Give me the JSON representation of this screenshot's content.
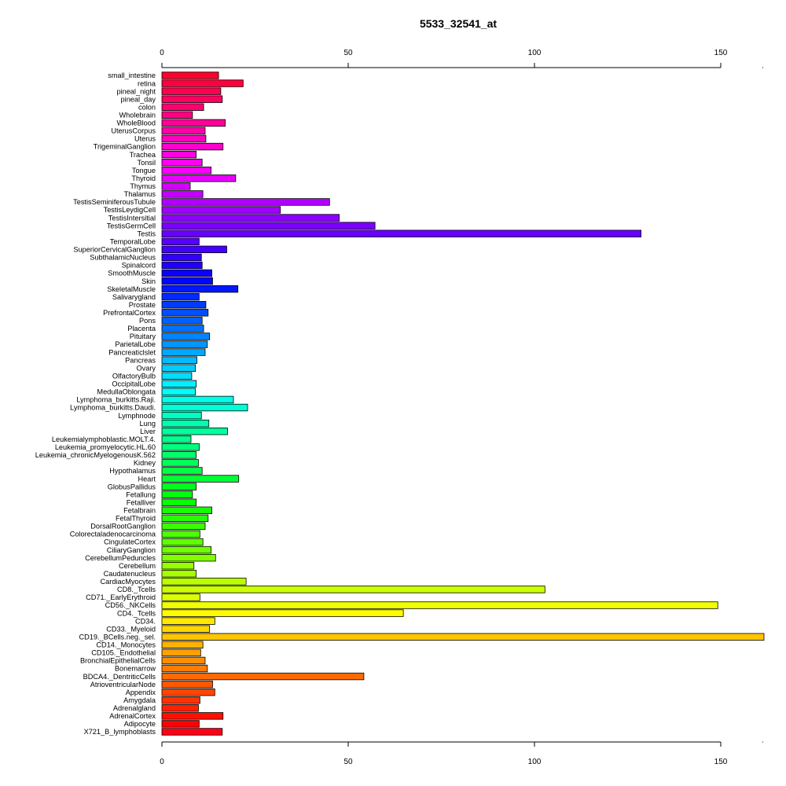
{
  "chart_data": {
    "type": "bar",
    "orientation": "horizontal",
    "title": "5533_32541_at",
    "xlabel": "",
    "ylabel": "",
    "xlim": [
      0,
      162
    ],
    "xticks": [
      0,
      50,
      100,
      150
    ],
    "xtick_labels": [
      "0",
      "50",
      "100",
      "150"
    ],
    "axis_positions": [
      "top",
      "bottom"
    ],
    "grid": false,
    "categories": [
      "small_intestine",
      "retina",
      "pineal_night",
      "pineal_day",
      "colon",
      "Wholebrain",
      "WholeBlood",
      "UterusCorpus",
      "Uterus",
      "TrigeminalGanglion",
      "Trachea",
      "Tonsil",
      "Tongue",
      "Thyroid",
      "Thymus",
      "Thalamus",
      "TestisSeminiferousTubule",
      "TestisLeydigCell",
      "TestisIntersitial",
      "TestisGermCell",
      "Testis",
      "TemporalLobe",
      "SuperiorCervicalGanglion",
      "SubthalamicNucleus",
      "Spinalcord",
      "SmoothMuscle",
      "Skin",
      "SkeletalMuscle",
      "Salivarygland",
      "Prostate",
      "PrefrontalCortex",
      "Pons",
      "Placenta",
      "Pituitary",
      "ParietalLobe",
      "Pancreaticlslet",
      "Pancreas",
      "Ovary",
      "OlfactoryBulb",
      "OccipitalLobe",
      "MedullaOblongata",
      "Lymphoma_burkitts.Raji.",
      "Lymphoma_burkitts.Daudi.",
      "Lymphnode",
      "Lung",
      "Liver",
      "Leukemialymphoblastic.MOLT.4.",
      "Leukemia_promyelocytic.HL.60",
      "Leukemia_chronicMyelogenousK.562",
      "Kidney",
      "Hypothalamus",
      "Heart",
      "GlobusPallidus",
      "Fetallung",
      "Fetalliver",
      "Fetalbrain",
      "FetalThyroid",
      "DorsalRootGanglion",
      "Colorectaladenocarcinoma",
      "CingulateCortex",
      "CiliaryGanglion",
      "CerebellumPeduncles",
      "Cerebellum",
      "Caudatenucleus",
      "CardiacMyocytes",
      "CD8._Tcells",
      "CD71._EarlyErythroid",
      "CD56._NKCells",
      "CD4._Tcells",
      "CD34.",
      "CD33._Myeloid",
      "CD19._BCells.neg._sel.",
      "CD14._Monocytes",
      "CD105._Endothelial",
      "BronchialEpithelialCells",
      "Bonemarrow",
      "BDCA4._DentriticCells",
      "AtrioventricularNode",
      "Appendix",
      "Amygdala",
      "Adrenalgland",
      "AdrenalCortex",
      "Adipocyte",
      "X721_B_lymphoblasts"
    ],
    "values": [
      15.2,
      21.8,
      15.8,
      16.2,
      11.2,
      8.2,
      17.0,
      11.6,
      11.8,
      16.4,
      9.2,
      10.8,
      13.2,
      19.8,
      7.6,
      11.0,
      45.0,
      31.8,
      47.6,
      57.2,
      128.6,
      10.0,
      17.4,
      10.6,
      10.8,
      13.4,
      13.6,
      20.4,
      10.0,
      11.8,
      12.4,
      10.8,
      11.2,
      12.8,
      12.2,
      11.6,
      9.4,
      9.0,
      8.0,
      9.2,
      9.0,
      19.2,
      23.0,
      10.6,
      12.6,
      17.6,
      7.8,
      10.0,
      9.2,
      9.8,
      10.8,
      20.6,
      9.2,
      8.2,
      9.2,
      13.4,
      12.4,
      11.6,
      10.2,
      11.0,
      13.2,
      14.4,
      8.6,
      9.2,
      22.6,
      102.8,
      10.2,
      149.2,
      64.8,
      14.2,
      12.8,
      161.6,
      11.0,
      10.4,
      11.6,
      12.2,
      54.2,
      13.6,
      14.2,
      10.2,
      9.8,
      16.4,
      10.0,
      16.2
    ]
  }
}
